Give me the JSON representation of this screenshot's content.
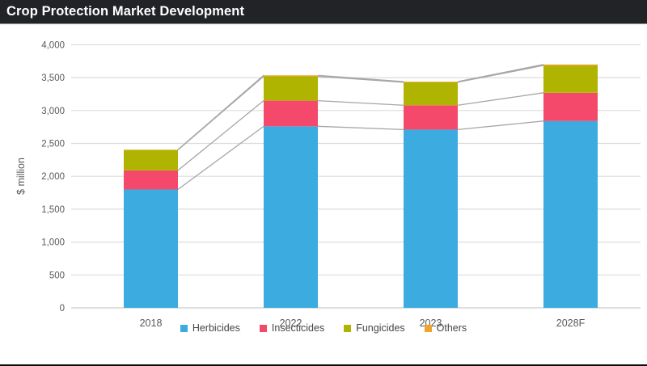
{
  "title_bar": {
    "title": "Crop Protection Market Development"
  },
  "chart_data": {
    "type": "bar",
    "stacked": true,
    "title": "Crop Protection Market Development",
    "ylabel": "$ million",
    "ylim": [
      0,
      4000
    ],
    "ytick_step": 500,
    "ytick_labels": [
      "0",
      "500",
      "1,000",
      "1,500",
      "2,000",
      "2,500",
      "3,000",
      "3,500",
      "4,000"
    ],
    "categories": [
      "2018",
      "2022",
      "2023",
      "2028F"
    ],
    "series": [
      {
        "name": "Herbicides",
        "color": "#3BABE0",
        "values": [
          1800,
          2760,
          2710,
          2840
        ]
      },
      {
        "name": "Insecticides",
        "color": "#F4496B",
        "values": [
          290,
          390,
          370,
          430
        ]
      },
      {
        "name": "Fungicides",
        "color": "#AFB400",
        "values": [
          310,
          370,
          350,
          415
        ]
      },
      {
        "name": "Others",
        "color": "#F0A32F",
        "values": [
          5,
          15,
          10,
          15
        ]
      }
    ],
    "legend_position": "bottom",
    "grid": true,
    "connector_lines": true,
    "colors": {
      "grid_line": "#DCDCDC",
      "axis_line": "#C9C9C9",
      "connector_line": "#A6A6A6",
      "tick_text": "#595959",
      "title_bar_bg": "#212326",
      "title_text": "#FFFFFF"
    }
  }
}
